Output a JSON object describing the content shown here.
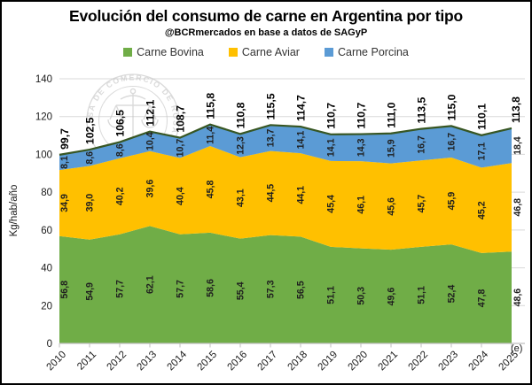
{
  "header": {
    "title": "Evolución del consumo de carne en Argentina por tipo",
    "subtitle": "@BCRmercados en base a datos de SAGyP"
  },
  "legend": [
    {
      "label": "Carne Bovina",
      "color": "#70AD47"
    },
    {
      "label": "Carne Aviar",
      "color": "#FFC000"
    },
    {
      "label": "Carne Porcina",
      "color": "#5B9BD5"
    }
  ],
  "watermark": {
    "ring_text": "SA DE COMERCIO DE ROSARIO",
    "icon": "scales-icon",
    "color": "#c3c3c3"
  },
  "chart_data": {
    "type": "area",
    "stacked": true,
    "title": "Evolución del consumo de carne en Argentina por tipo",
    "subtitle": "@BCRmercados en base a datos de SAGyP",
    "categories": [
      "2010",
      "2011",
      "2012",
      "2013",
      "2014",
      "2015",
      "2016",
      "2017",
      "2018",
      "2019",
      "2020",
      "2021",
      "2022",
      "2023",
      "2024",
      "2025"
    ],
    "last_category_note": "(e)",
    "series": [
      {
        "name": "Carne Bovina",
        "color": "#70AD47",
        "values": [
          56.8,
          54.9,
          57.7,
          62.1,
          57.7,
          58.6,
          55.4,
          57.3,
          56.5,
          51.1,
          50.3,
          49.6,
          51.1,
          52.4,
          47.8,
          48.6
        ]
      },
      {
        "name": "Carne Aviar",
        "color": "#FFC000",
        "values": [
          34.9,
          39.0,
          40.2,
          39.6,
          40.4,
          45.8,
          43.1,
          44.5,
          44.1,
          45.4,
          46.1,
          45.6,
          45.7,
          45.9,
          45.2,
          46.8
        ]
      },
      {
        "name": "Carne Porcina",
        "color": "#5B9BD5",
        "values": [
          8.1,
          8.6,
          8.6,
          10.4,
          10.7,
          11.4,
          12.3,
          13.7,
          14.1,
          14.1,
          14.3,
          15.9,
          16.7,
          16.7,
          17.1,
          18.4
        ]
      }
    ],
    "totals": [
      99.7,
      102.5,
      106.5,
      112.1,
      108.7,
      115.8,
      110.8,
      115.5,
      114.7,
      110.7,
      110.7,
      111.0,
      113.5,
      115.0,
      110.1,
      113.8
    ],
    "total_line_color": "#375623",
    "ylabel": "Kg/hab/año",
    "ylim": [
      0,
      140
    ],
    "yticks": [
      0,
      20,
      40,
      60,
      80,
      100,
      120,
      140
    ],
    "grid": true,
    "legend_position": "top",
    "decimal_separator": ","
  }
}
